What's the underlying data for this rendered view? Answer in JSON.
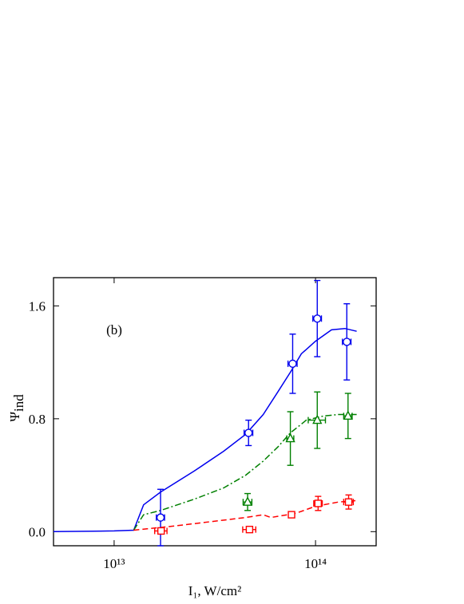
{
  "chart_data": {
    "type": "scatter",
    "xscale": "log",
    "xlim": [
      5000000000000.0,
      200000000000000.0
    ],
    "ylim": [
      -0.1,
      1.8
    ],
    "xticks": [
      {
        "value": 10000000000000.0,
        "label": "10¹³"
      },
      {
        "value": 100000000000000.0,
        "label": "10¹⁴"
      }
    ],
    "yticks": [
      {
        "value": 0,
        "label": "0.0"
      },
      0.8,
      1.6
    ],
    "xlabel": "I₁, W/cm²",
    "ylabel": "Ψ",
    "ylabel_subscript": "ind",
    "annotation": "(b)",
    "series": [
      {
        "kind": "curve",
        "line": "solid",
        "color": "#0000ee",
        "x": [
          5000000000000.0,
          10000000000000.0,
          12500000000000.0,
          14000000000000.0,
          17000000000000.0,
          25000000000000.0,
          35000000000000.0,
          45000000000000.0,
          55000000000000.0,
          65000000000000.0,
          75000000000000.0,
          85000000000000.0,
          100000000000000.0,
          120000000000000.0,
          140000000000000.0,
          160000000000000.0
        ],
        "values": [
          0,
          0.005,
          0.01,
          0.19,
          0.28,
          0.43,
          0.57,
          0.69,
          0.83,
          0.99,
          1.13,
          1.26,
          1.35,
          1.43,
          1.44,
          1.42
        ]
      },
      {
        "kind": "curve",
        "line": "dashdot",
        "color": "#008000",
        "x": [
          12500000000000.0,
          14000000000000.0,
          17000000000000.0,
          25000000000000.0,
          35000000000000.0,
          45000000000000.0,
          55000000000000.0,
          65000000000000.0,
          75000000000000.0,
          90000000000000.0,
          110000000000000.0,
          130000000000000.0,
          160000000000000.0
        ],
        "values": [
          0.01,
          0.12,
          0.15,
          0.23,
          0.31,
          0.4,
          0.5,
          0.6,
          0.7,
          0.79,
          0.82,
          0.83,
          0.83
        ]
      },
      {
        "kind": "curve",
        "line": "dashed",
        "color": "#ff0000",
        "x": [
          12500000000000.0,
          20000000000000.0,
          30000000000000.0,
          45000000000000.0,
          55000000000000.0,
          60000000000000.0,
          80000000000000.0,
          100000000000000.0,
          130000000000000.0,
          160000000000000.0
        ],
        "values": [
          0.01,
          0.04,
          0.07,
          0.1,
          0.12,
          0.1,
          0.13,
          0.18,
          0.21,
          0.22
        ]
      },
      {
        "kind": "points",
        "marker": "circle",
        "color": "#0000ee",
        "x": [
          17000000000000.0,
          46500000000000.0,
          77000000000000.0,
          102000000000000.0,
          143000000000000.0
        ],
        "values": [
          0.1,
          0.7,
          1.19,
          1.51,
          1.345
        ],
        "xerr": [
          800000000000.0,
          2300000000000.0,
          4000000000000.0,
          5000000000000.0,
          7000000000000.0
        ],
        "yerr": [
          0.2,
          0.09,
          0.21,
          0.27,
          0.27
        ]
      },
      {
        "kind": "points",
        "marker": "triangle",
        "color": "#008000",
        "x": [
          46000000000000.0,
          75000000000000.0,
          102000000000000.0,
          145000000000000.0
        ],
        "values": [
          0.21,
          0.66,
          0.79,
          0.82
        ],
        "xerr": [
          2300000000000.0,
          3000000000000.0,
          10000000000000.0,
          7000000000000.0
        ],
        "yerr": [
          0.06,
          0.19,
          0.2,
          0.16
        ]
      },
      {
        "kind": "points",
        "marker": "square",
        "color": "#ff0000",
        "x": [
          17100000000000.0,
          47000000000000.0,
          76000000000000.0,
          103000000000000.0,
          146000000000000.0
        ],
        "values": [
          0.005,
          0.015,
          0.12,
          0.2,
          0.21
        ],
        "xerr": [
          1200000000000.0,
          3500000000000.0,
          2500000000000.0,
          5000000000000.0,
          8000000000000.0
        ],
        "yerr": [
          0.01,
          0.01,
          0.02,
          0.05,
          0.05
        ]
      }
    ]
  }
}
